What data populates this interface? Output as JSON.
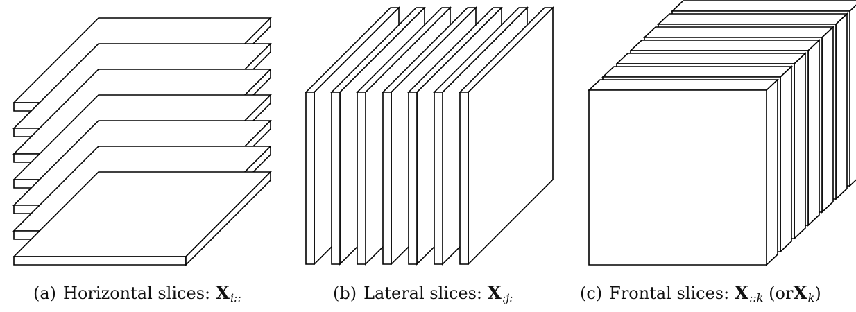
{
  "diagram": {
    "panels": [
      {
        "id": "a",
        "kind": "horizontal",
        "slice_count": 7,
        "caption": {
          "prefix": "(a)",
          "text": "Horizontal slices:",
          "symbol": "X",
          "subscript": "i::",
          "suffix": ""
        }
      },
      {
        "id": "b",
        "kind": "lateral",
        "slice_count": 7,
        "caption": {
          "prefix": "(b)",
          "text": "Lateral slices:",
          "symbol": "X",
          "subscript": ":j:",
          "suffix": ""
        }
      },
      {
        "id": "c",
        "kind": "frontal",
        "slice_count": 7,
        "caption": {
          "prefix": "(c)",
          "text": "Frontal slices:",
          "symbol": "X",
          "subscript": "::k",
          "suffix_open": "(or",
          "alt_symbol": "X",
          "alt_subscript": "k",
          "suffix_close": ")"
        }
      }
    ],
    "colors": {
      "stroke": "#000000",
      "fill": "#ffffff"
    }
  }
}
